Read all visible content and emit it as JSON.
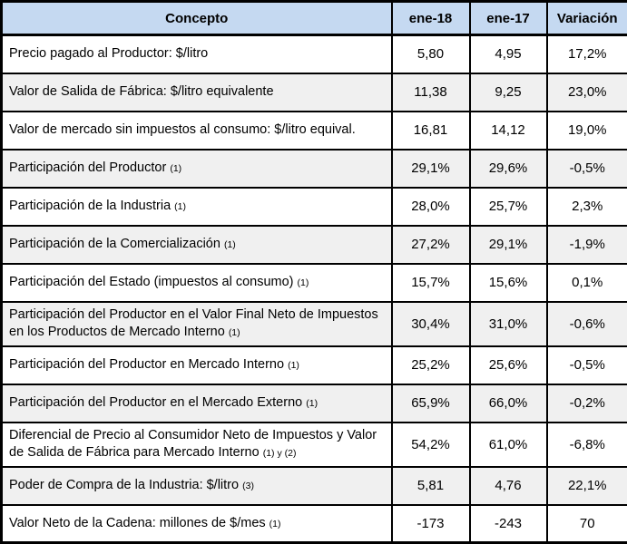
{
  "colors": {
    "header_bg": "#C5D9F1",
    "alt_row_bg": "#F0F0F0",
    "border": "#000000"
  },
  "chart_data": {
    "type": "table",
    "title": "",
    "columns": [
      "Concepto",
      "ene-18",
      "ene-17",
      "Variación"
    ],
    "rows": [
      {
        "concepto": "Precio pagado al Productor: $/litro",
        "note": "",
        "ene18": "5,80",
        "ene17": "4,95",
        "variacion": "17,2%"
      },
      {
        "concepto": "Valor de Salida de Fábrica: $/litro equivalente",
        "note": "",
        "ene18": "11,38",
        "ene17": "9,25",
        "variacion": "23,0%"
      },
      {
        "concepto": "Valor de mercado sin impuestos al consumo: $/litro equival.",
        "note": "",
        "ene18": "16,81",
        "ene17": "14,12",
        "variacion": "19,0%"
      },
      {
        "concepto": "Participación del Productor",
        "note": "(1)",
        "ene18": "29,1%",
        "ene17": "29,6%",
        "variacion": "-0,5%"
      },
      {
        "concepto": "Participación de la Industria",
        "note": "(1)",
        "ene18": "28,0%",
        "ene17": "25,7%",
        "variacion": "2,3%"
      },
      {
        "concepto": "Participación de la Comercialización",
        "note": "(1)",
        "ene18": "27,2%",
        "ene17": "29,1%",
        "variacion": "-1,9%"
      },
      {
        "concepto": "Participación del Estado (impuestos al consumo)",
        "note": "(1)",
        "ene18": "15,7%",
        "ene17": "15,6%",
        "variacion": "0,1%"
      },
      {
        "concepto": "Participación del Productor en el Valor Final Neto de Impuestos en los Productos de Mercado Interno",
        "note": "(1)",
        "ene18": "30,4%",
        "ene17": "31,0%",
        "variacion": "-0,6%"
      },
      {
        "concepto": "Participación del Productor en Mercado Interno",
        "note": "(1)",
        "ene18": "25,2%",
        "ene17": "25,6%",
        "variacion": "-0,5%"
      },
      {
        "concepto": "Participación del Productor en el Mercado Externo",
        "note": "(1)",
        "ene18": "65,9%",
        "ene17": "66,0%",
        "variacion": "-0,2%"
      },
      {
        "concepto": "Diferencial de Precio al Consumidor Neto de Impuestos y Valor de Salida de Fábrica para Mercado Interno",
        "note": "(1) y (2)",
        "ene18": "54,2%",
        "ene17": "61,0%",
        "variacion": "-6,8%"
      },
      {
        "concepto": "Poder de Compra de la Industria: $/litro",
        "note": "(3)",
        "ene18": "5,81",
        "ene17": "4,76",
        "variacion": "22,1%"
      },
      {
        "concepto": "Valor Neto de la Cadena: millones de $/mes",
        "note": "(1)",
        "ene18": "-173",
        "ene17": "-243",
        "variacion": "70"
      }
    ]
  }
}
